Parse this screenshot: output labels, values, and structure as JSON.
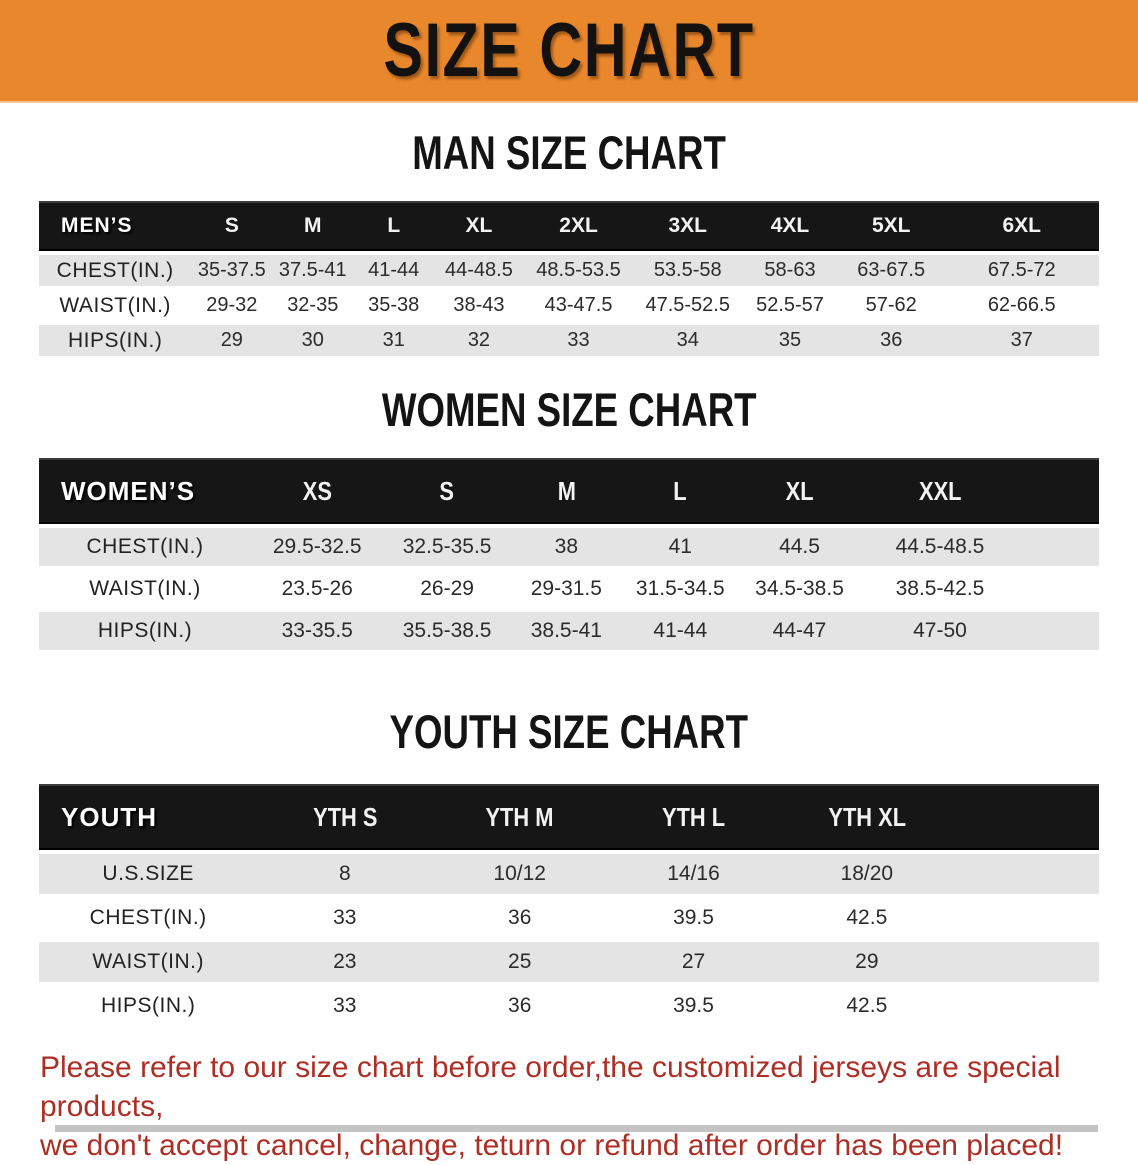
{
  "banner": {
    "title": "SIZE CHART"
  },
  "colors": {
    "banner_bg": "#E8872B",
    "header_band": "#161616",
    "row_alt": "#E4E4E4",
    "disclaimer_text": "#AC2F26"
  },
  "sections": [
    {
      "id": "men",
      "heading": "MAN SIZE CHART",
      "table": {
        "header_label": "MEN’S",
        "columns": [
          "S",
          "M",
          "L",
          "XL",
          "2XL",
          "3XL",
          "4XL",
          "5XL",
          "6XL"
        ],
        "rows": [
          {
            "label": "CHEST(IN.)",
            "values": [
              "35-37.5",
              "37.5-41",
              "41-44",
              "44-48.5",
              "48.5-53.5",
              "53.5-58",
              "58-63",
              "63-67.5",
              "67.5-72"
            ]
          },
          {
            "label": "WAIST(IN.)",
            "values": [
              "29-32",
              "32-35",
              "35-38",
              "38-43",
              "43-47.5",
              "47.5-52.5",
              "52.5-57",
              "57-62",
              "62-66.5"
            ]
          },
          {
            "label": "HIPS(IN.)",
            "values": [
              "29",
              "30",
              "31",
              "32",
              "33",
              "34",
              "35",
              "36",
              "37"
            ]
          }
        ]
      }
    },
    {
      "id": "women",
      "heading": "WOMEN SIZE CHART",
      "table": {
        "header_label": "WOMEN’S",
        "columns": [
          "XS",
          "S",
          "M",
          "L",
          "XL",
          "XXL"
        ],
        "rows": [
          {
            "label": "CHEST(IN.)",
            "values": [
              "29.5-32.5",
              "32.5-35.5",
              "38",
              "41",
              "44.5",
              "44.5-48.5"
            ]
          },
          {
            "label": "WAIST(IN.)",
            "values": [
              "23.5-26",
              "26-29",
              "29-31.5",
              "31.5-34.5",
              "34.5-38.5",
              "38.5-42.5"
            ]
          },
          {
            "label": "HIPS(IN.)",
            "values": [
              "33-35.5",
              "35.5-38.5",
              "38.5-41",
              "41-44",
              "44-47",
              "47-50"
            ]
          }
        ]
      }
    },
    {
      "id": "youth",
      "heading": "YOUTH SIZE CHART",
      "table": {
        "header_label": "YOUTH",
        "columns": [
          "YTH S",
          "YTH M",
          "YTH L",
          "YTH XL"
        ],
        "rows": [
          {
            "label": "U.S.SIZE",
            "values": [
              "8",
              "10/12",
              "14/16",
              "18/20"
            ]
          },
          {
            "label": "CHEST(IN.)",
            "values": [
              "33",
              "36",
              "39.5",
              "42.5"
            ]
          },
          {
            "label": "WAIST(IN.)",
            "values": [
              "23",
              "25",
              "27",
              "29"
            ]
          },
          {
            "label": "HIPS(IN.)",
            "values": [
              "33",
              "36",
              "39.5",
              "42.5"
            ]
          }
        ]
      }
    }
  ],
  "disclaimer": {
    "lines": [
      "Please refer to our size chart before order,the customized jerseys are special products,",
      "we don't accept cancel, change, teturn or refund after order has been placed!"
    ]
  }
}
